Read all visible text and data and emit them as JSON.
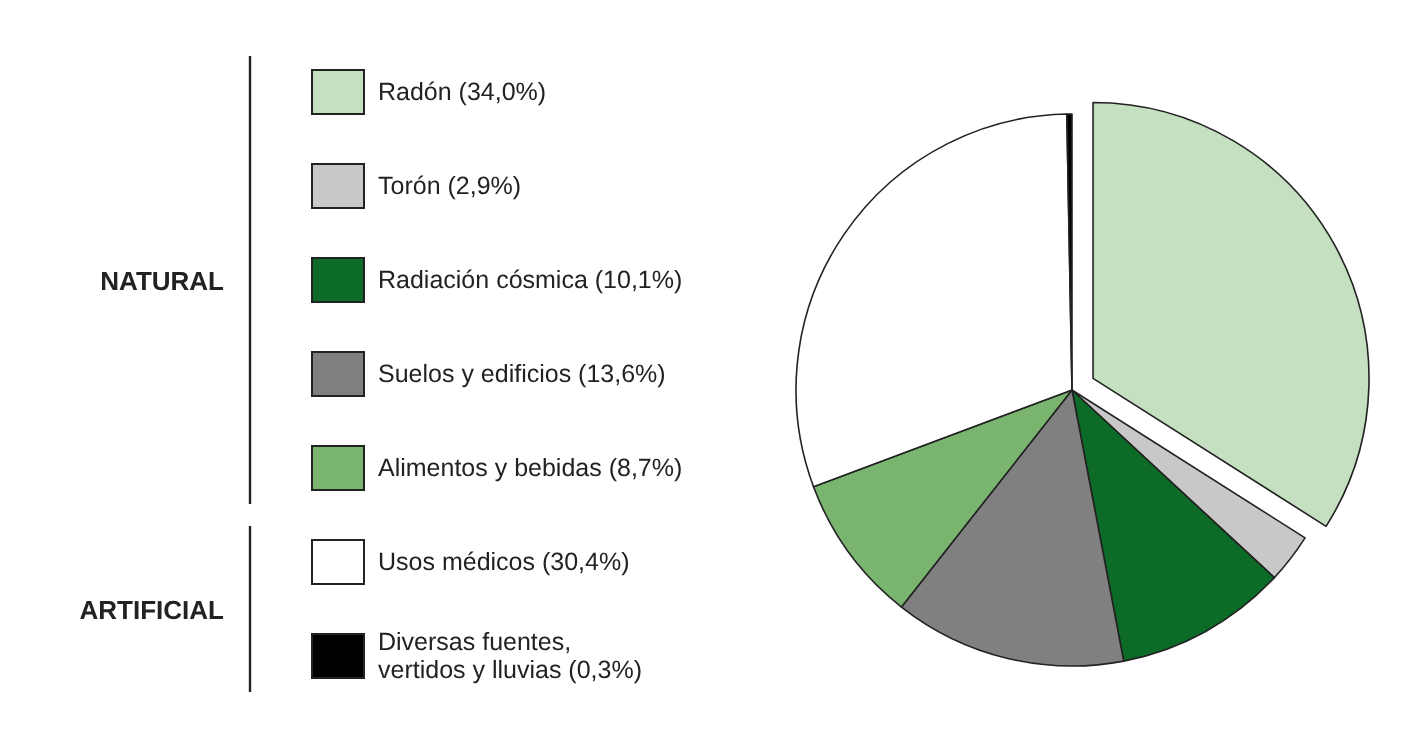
{
  "chart_data": {
    "type": "pie",
    "categories": [
      "Radón (34,0%)",
      "Torón (2,9%)",
      "Radiación cósmica (10,1%)",
      "Suelos y edificios (13,6%)",
      "Alimentos y bebidas (8,7%)",
      "Usos médicos (30,4%)",
      "Diversas fuentes, vertidos y lluvias (0,3%)"
    ],
    "values": [
      34.0,
      2.9,
      10.1,
      13.6,
      8.7,
      30.4,
      0.3
    ],
    "colors": [
      "#c5e0c0",
      "#c8c8c8",
      "#0b6b27",
      "#808080",
      "#7ab570",
      "#ffffff",
      "#000000"
    ],
    "annotations": [
      "NATURAL",
      "ARTIFICIAL"
    ],
    "legend": "left"
  }
}
